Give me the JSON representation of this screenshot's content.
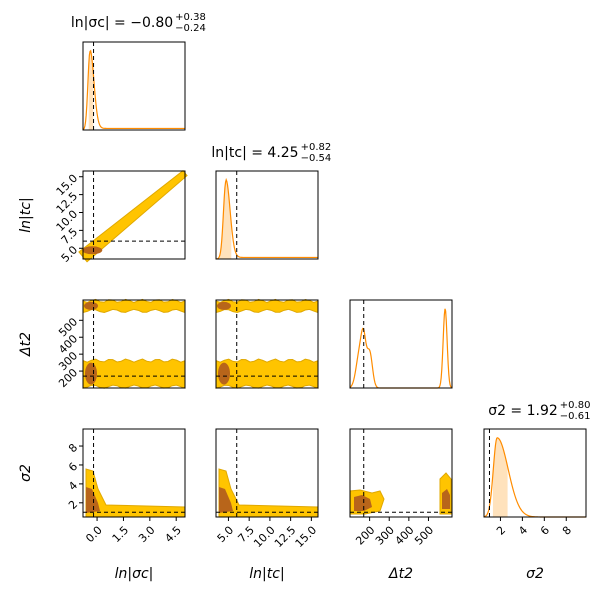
{
  "chart_data": {
    "type": "corner",
    "colors": {
      "line": "#ff8c00",
      "ci_fill": "#ffdfb5",
      "contour_outer": "#ffc400",
      "contour_outer_edge": "#e0a800",
      "contour_inner": "#b8651a"
    },
    "parameters": [
      {
        "key": "ln_sigma_c",
        "label": "ln|σc|",
        "title": {
          "main": "ln|σc| = −0.80",
          "sup": "+0.38",
          "sub": "−0.24"
        },
        "median": -0.8,
        "err_plus": 0.38,
        "err_minus": 0.24,
        "true_value": -0.2,
        "range": [
          -0.8,
          5.0
        ],
        "ticks": [
          "0.0",
          "1.5",
          "3.0",
          "4.5"
        ],
        "tick_values": [
          0.0,
          1.5,
          3.0,
          4.5
        ],
        "marginal": {
          "peak": -0.4,
          "width_left": 0.12,
          "width_right": 0.22,
          "tail": 0.02,
          "ci": [
            -0.5,
            -0.2
          ]
        }
      },
      {
        "key": "ln_t_c",
        "label": "ln|tc|",
        "title": {
          "main": "ln|tc| = 4.25",
          "sup": "+0.82",
          "sub": "−0.54"
        },
        "median": 4.25,
        "err_plus": 0.82,
        "err_minus": 0.54,
        "true_value": 6.0,
        "range": [
          3.5,
          15.8
        ],
        "ticks": [
          "5.0",
          "7.5",
          "10.0",
          "12.5",
          "15.0"
        ],
        "tick_values": [
          5.0,
          7.5,
          10.0,
          12.5,
          15.0
        ],
        "marginal": {
          "peak": 4.7,
          "width_left": 0.3,
          "width_right": 0.5,
          "tail": 0.02,
          "ci": [
            3.9,
            5.4
          ]
        }
      },
      {
        "key": "delta_t2",
        "label": "Δt2",
        "title": null,
        "true_value": 170,
        "range": [
          100,
          620
        ],
        "ticks": [
          "200",
          "300",
          "400",
          "500"
        ],
        "tick_values": [
          200,
          300,
          400,
          500
        ],
        "marginal": {
          "peaks": [
            [
              150,
              18,
              0.45
            ],
            [
              170,
              12,
              0.45
            ],
            [
              200,
              14,
              0.45
            ],
            [
              585,
              10,
              1.0
            ]
          ]
        }
      },
      {
        "key": "sigma_2",
        "label": "σ2",
        "title": {
          "main": "σ2 = 1.92",
          "sup": "+0.80",
          "sub": "−0.61"
        },
        "median": 1.92,
        "err_plus": 0.8,
        "err_minus": 0.61,
        "true_value": 1.0,
        "range": [
          0.5,
          9.8
        ],
        "ticks": [
          "2",
          "4",
          "6",
          "8"
        ],
        "tick_values": [
          2,
          4,
          6,
          8
        ],
        "marginal": {
          "peak": 1.7,
          "width_left": 0.35,
          "width_right": 1.0,
          "tail": 0.0,
          "ci": [
            1.3,
            2.7
          ]
        }
      }
    ]
  }
}
